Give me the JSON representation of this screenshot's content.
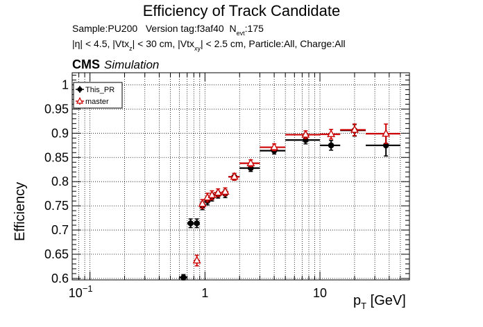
{
  "chart_data": {
    "type": "scatter",
    "title": "Efficiency of Track Candidate",
    "subtitle_line1": {
      "sample": "Sample:PU200",
      "version": "Version tag:f3af40",
      "nevt_label": "N",
      "nevt_sub": "evt",
      "nevt_value": ":175"
    },
    "subtitle_line2": {
      "p1": "|η| < 4.5, |Vtx",
      "s1": "z",
      "p2": "| < 30 cm, |Vtx",
      "s2": "xy",
      "p3": "| < 2.5 cm, Particle:All, Charge:All"
    },
    "experiment": "CMS",
    "experiment_tag": "Simulation",
    "ylabel": "Efficiency",
    "xlabel_main": "p",
    "xlabel_sub": "T",
    "xlabel_unit": " [GeV]",
    "xscale": "log",
    "xlim": [
      0.07,
      60
    ],
    "ylim": [
      0.597,
      1.025
    ],
    "grid": true,
    "yticks": [
      0.6,
      0.65,
      0.7,
      0.75,
      0.8,
      0.85,
      0.9,
      0.95,
      1
    ],
    "ytick_labels": [
      "0.6",
      "0.65",
      "0.7",
      "0.75",
      "0.8",
      "0.85",
      "0.9",
      "0.95",
      "1"
    ],
    "xticks": [
      0.1,
      1,
      10
    ],
    "xtick_labels": [
      {
        "base": "10",
        "exp": "−1"
      },
      {
        "base": "1",
        "exp": ""
      },
      {
        "base": "10",
        "exp": ""
      }
    ],
    "legend_position": "top-left",
    "series": [
      {
        "name": "This_PR",
        "color": "#000000",
        "marker": "filled-circle",
        "points": [
          {
            "x": 0.65,
            "xlo": 0.6,
            "xhi": 0.7,
            "y": 0.602,
            "yerr": 0.006
          },
          {
            "x": 0.75,
            "xlo": 0.7,
            "xhi": 0.8,
            "y": 0.714,
            "yerr": 0.009
          },
          {
            "x": 0.85,
            "xlo": 0.8,
            "xhi": 0.9,
            "y": 0.714,
            "yerr": 0.009
          },
          {
            "x": 0.95,
            "xlo": 0.9,
            "xhi": 1.0,
            "y": 0.75,
            "yerr": 0.008
          },
          {
            "x": 1.05,
            "xlo": 1.0,
            "xhi": 1.1,
            "y": 0.76,
            "yerr": 0.008
          },
          {
            "x": 1.15,
            "xlo": 1.1,
            "xhi": 1.2,
            "y": 0.768,
            "yerr": 0.008
          },
          {
            "x": 1.3,
            "xlo": 1.2,
            "xhi": 1.4,
            "y": 0.773,
            "yerr": 0.007
          },
          {
            "x": 1.5,
            "xlo": 1.4,
            "xhi": 1.6,
            "y": 0.775,
            "yerr": 0.008
          },
          {
            "x": 1.8,
            "xlo": 1.6,
            "xhi": 2.0,
            "y": 0.81,
            "yerr": 0.007
          },
          {
            "x": 2.5,
            "xlo": 2.0,
            "xhi": 3.0,
            "y": 0.828,
            "yerr": 0.007
          },
          {
            "x": 4.0,
            "xlo": 3.0,
            "xhi": 5.0,
            "y": 0.864,
            "yerr": 0.007
          },
          {
            "x": 7.5,
            "xlo": 5.0,
            "xhi": 10.0,
            "y": 0.886,
            "yerr": 0.008
          },
          {
            "x": 12.5,
            "xlo": 10.0,
            "xhi": 15.0,
            "y": 0.875,
            "yerr": 0.01
          },
          {
            "x": 20.0,
            "xlo": 15.0,
            "xhi": 25.0,
            "y": 0.906,
            "yerr": 0.012
          },
          {
            "x": 37.5,
            "xlo": 25.0,
            "xhi": 50.0,
            "y": 0.875,
            "yerr": 0.022
          }
        ]
      },
      {
        "name": "master",
        "color": "#cc0000",
        "marker": "open-triangle",
        "points": [
          {
            "x": 0.85,
            "xlo": 0.8,
            "xhi": 0.9,
            "y": 0.637,
            "yerr": 0.011
          },
          {
            "x": 0.95,
            "xlo": 0.9,
            "xhi": 1.0,
            "y": 0.754,
            "yerr": 0.009
          },
          {
            "x": 1.05,
            "xlo": 1.0,
            "xhi": 1.1,
            "y": 0.767,
            "yerr": 0.009
          },
          {
            "x": 1.15,
            "xlo": 1.1,
            "xhi": 1.2,
            "y": 0.772,
            "yerr": 0.009
          },
          {
            "x": 1.3,
            "xlo": 1.2,
            "xhi": 1.4,
            "y": 0.777,
            "yerr": 0.008
          },
          {
            "x": 1.5,
            "xlo": 1.4,
            "xhi": 1.6,
            "y": 0.779,
            "yerr": 0.008
          },
          {
            "x": 1.8,
            "xlo": 1.6,
            "xhi": 2.0,
            "y": 0.81,
            "yerr": 0.007
          },
          {
            "x": 2.5,
            "xlo": 2.0,
            "xhi": 3.0,
            "y": 0.838,
            "yerr": 0.007
          },
          {
            "x": 4.0,
            "xlo": 3.0,
            "xhi": 5.0,
            "y": 0.871,
            "yerr": 0.007
          },
          {
            "x": 7.5,
            "xlo": 5.0,
            "xhi": 10.0,
            "y": 0.897,
            "yerr": 0.008
          },
          {
            "x": 12.5,
            "xlo": 10.0,
            "xhi": 15.0,
            "y": 0.898,
            "yerr": 0.01
          },
          {
            "x": 20.0,
            "xlo": 15.0,
            "xhi": 25.0,
            "y": 0.907,
            "yerr": 0.012
          },
          {
            "x": 37.5,
            "xlo": 25.0,
            "xhi": 50.0,
            "y": 0.899,
            "yerr": 0.02
          }
        ]
      }
    ]
  }
}
